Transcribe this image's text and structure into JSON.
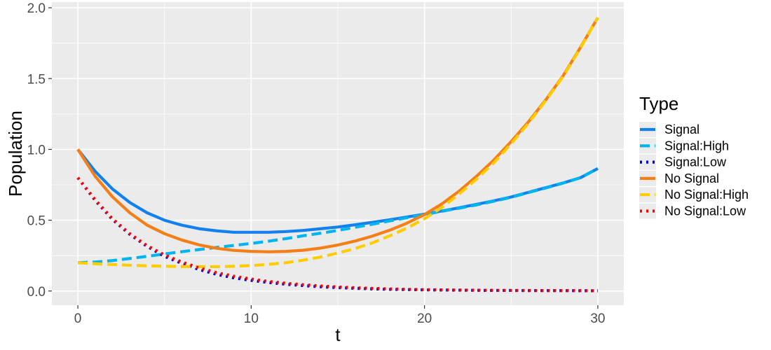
{
  "chart_data": {
    "type": "line",
    "title": "",
    "xlabel": "t",
    "ylabel": "Population",
    "xlim": [
      -1.5,
      31.5
    ],
    "ylim": [
      -0.1,
      2.04
    ],
    "x_ticks": [
      0,
      10,
      20,
      30
    ],
    "x_tick_labels": [
      "0",
      "10",
      "20",
      "30"
    ],
    "y_ticks": [
      0.0,
      0.5,
      1.0,
      1.5,
      2.0
    ],
    "y_tick_labels": [
      "0.0",
      "0.5",
      "1.0",
      "1.5",
      "2.0"
    ],
    "grid": true,
    "panel_background": "#ebebeb",
    "legend_title": "Type",
    "legend_position": "right",
    "x": [
      0,
      1,
      2,
      3,
      4,
      5,
      6,
      7,
      8,
      9,
      10,
      11,
      12,
      13,
      14,
      15,
      16,
      17,
      18,
      19,
      20,
      21,
      22,
      23,
      24,
      25,
      26,
      27,
      28,
      29,
      30
    ],
    "series": [
      {
        "name": "Signal",
        "color": "#1380f0",
        "dash": "solid",
        "values": [
          1.0,
          0.845,
          0.72,
          0.625,
          0.552,
          0.5,
          0.465,
          0.44,
          0.425,
          0.415,
          0.415,
          0.415,
          0.42,
          0.428,
          0.44,
          0.452,
          0.468,
          0.485,
          0.503,
          0.523,
          0.543,
          0.565,
          0.588,
          0.612,
          0.637,
          0.664,
          0.697,
          0.73,
          0.763,
          0.8,
          0.865
        ]
      },
      {
        "name": "Signal:High",
        "color": "#00b4f0",
        "dash": "dashed",
        "values": [
          0.2,
          0.205,
          0.215,
          0.23,
          0.245,
          0.262,
          0.278,
          0.293,
          0.308,
          0.322,
          0.336,
          0.352,
          0.37,
          0.39,
          0.408,
          0.428,
          0.45,
          0.472,
          0.495,
          0.518,
          0.54,
          0.563,
          0.585,
          0.608,
          0.634,
          0.662,
          0.695,
          0.728,
          0.762,
          0.8,
          0.865
        ]
      },
      {
        "name": "Signal:Low",
        "color": "#0000cc",
        "dash": "dotted",
        "values": [
          0.8,
          0.64,
          0.505,
          0.4,
          0.315,
          0.245,
          0.195,
          0.152,
          0.118,
          0.093,
          0.075,
          0.06,
          0.048,
          0.038,
          0.03,
          0.024,
          0.019,
          0.015,
          0.012,
          0.01,
          0.008,
          0.007,
          0.006,
          0.005,
          0.004,
          0.004,
          0.003,
          0.003,
          0.003,
          0.002,
          0.002
        ]
      },
      {
        "name": "No Signal",
        "color": "#f57f17",
        "dash": "solid",
        "values": [
          1.0,
          0.81,
          0.665,
          0.552,
          0.465,
          0.405,
          0.36,
          0.326,
          0.302,
          0.287,
          0.28,
          0.277,
          0.28,
          0.288,
          0.303,
          0.325,
          0.353,
          0.388,
          0.43,
          0.48,
          0.54,
          0.615,
          0.705,
          0.81,
          0.925,
          1.055,
          1.195,
          1.35,
          1.52,
          1.72,
          1.93
        ]
      },
      {
        "name": "No Signal:High",
        "color": "#ffcc00",
        "dash": "dashed",
        "values": [
          0.2,
          0.193,
          0.187,
          0.182,
          0.178,
          0.175,
          0.173,
          0.172,
          0.172,
          0.175,
          0.18,
          0.188,
          0.2,
          0.218,
          0.24,
          0.268,
          0.3,
          0.34,
          0.39,
          0.445,
          0.51,
          0.59,
          0.685,
          0.79,
          0.905,
          1.04,
          1.185,
          1.345,
          1.515,
          1.715,
          1.93
        ]
      },
      {
        "name": "No Signal:Low",
        "color": "#ff0000",
        "dash": "dotted",
        "values": [
          0.8,
          0.645,
          0.51,
          0.405,
          0.32,
          0.255,
          0.205,
          0.163,
          0.13,
          0.105,
          0.085,
          0.068,
          0.055,
          0.045,
          0.036,
          0.029,
          0.023,
          0.019,
          0.015,
          0.012,
          0.01,
          0.008,
          0.007,
          0.006,
          0.005,
          0.004,
          0.004,
          0.003,
          0.003,
          0.003,
          0.002
        ]
      }
    ]
  }
}
